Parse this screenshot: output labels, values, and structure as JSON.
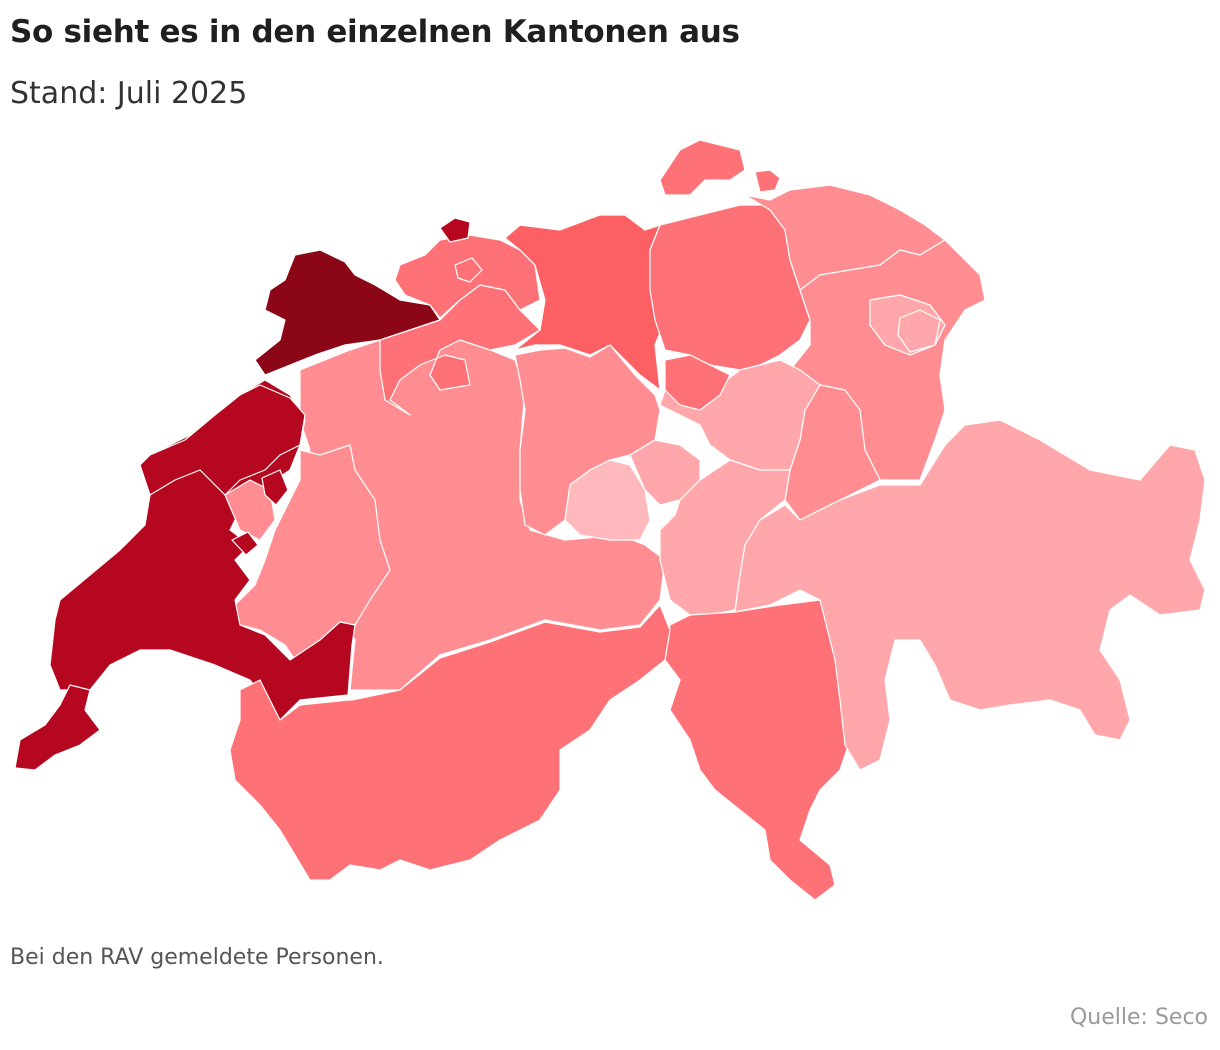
{
  "header": {
    "title": "So sieht es in den einzelnen Kantonen aus",
    "subtitle": "Stand: Juli 2025"
  },
  "footer": {
    "note": "Bei den RAV gemeldete Personen.",
    "source": "Quelle: Seco"
  },
  "map": {
    "country": "Schweiz",
    "colors": {
      "level_1_lightest": "#ffb9bd",
      "level_2": "#ffa7ab",
      "level_3": "#ff8d91",
      "level_4": "#fe7277",
      "level_5": "#fc6064",
      "level_6": "#b60720",
      "level_7_darkest": "#8b0617",
      "border": "#ffffff"
    },
    "regions": [
      {
        "id": "jura",
        "fill": "level_7_darkest"
      },
      {
        "id": "basel-stadt",
        "fill": "level_6"
      },
      {
        "id": "neuchatel",
        "fill": "level_6"
      },
      {
        "id": "vaud",
        "fill": "level_6"
      },
      {
        "id": "geneve",
        "fill": "level_6"
      },
      {
        "id": "valais",
        "fill": "level_4"
      },
      {
        "id": "ticino",
        "fill": "level_4"
      },
      {
        "id": "aargau",
        "fill": "level_5"
      },
      {
        "id": "zuerich",
        "fill": "level_4"
      },
      {
        "id": "schaffhausen",
        "fill": "level_4"
      },
      {
        "id": "basel-landschaft",
        "fill": "level_4"
      },
      {
        "id": "solothurn",
        "fill": "level_4"
      },
      {
        "id": "zug",
        "fill": "level_4"
      },
      {
        "id": "bern",
        "fill": "level_3"
      },
      {
        "id": "fribourg",
        "fill": "level_3"
      },
      {
        "id": "luzern",
        "fill": "level_3"
      },
      {
        "id": "thurgau",
        "fill": "level_3"
      },
      {
        "id": "st-gallen",
        "fill": "level_3"
      },
      {
        "id": "glarus",
        "fill": "level_3"
      },
      {
        "id": "schwyz",
        "fill": "level_2"
      },
      {
        "id": "uri",
        "fill": "level_2"
      },
      {
        "id": "graubuenden",
        "fill": "level_2"
      },
      {
        "id": "nidwalden",
        "fill": "level_2"
      },
      {
        "id": "appenzell-innerrhoden",
        "fill": "level_2"
      },
      {
        "id": "appenzell-ausserrhoden",
        "fill": "level_2"
      },
      {
        "id": "obwalden",
        "fill": "level_1_lightest"
      }
    ]
  }
}
